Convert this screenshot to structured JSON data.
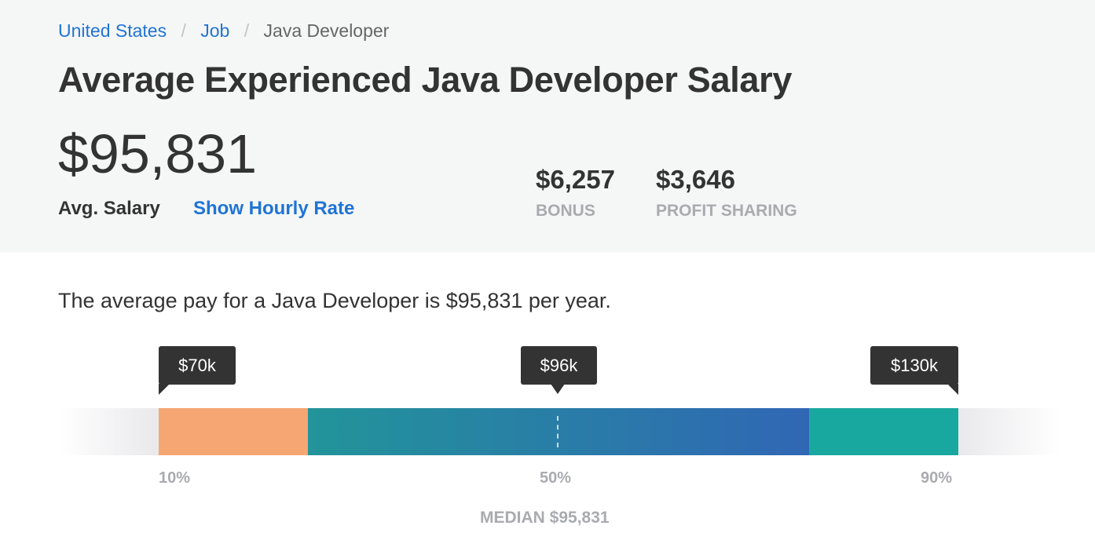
{
  "breadcrumb": {
    "items": [
      "United States",
      "Job",
      "Java Developer"
    ],
    "separator": "/"
  },
  "page_title": "Average Experienced Java Developer Salary",
  "salary": {
    "value": "$95,831",
    "label": "Avg. Salary",
    "hourly_link": "Show Hourly Rate"
  },
  "extras": [
    {
      "value": "$6,257",
      "label": "BONUS"
    },
    {
      "value": "$3,646",
      "label": "PROFIT SHARING"
    }
  ],
  "description": "The average pay for a Java Developer is $95,831 per year.",
  "distribution": {
    "markers": [
      {
        "label": "$70k",
        "percentile": "10%"
      },
      {
        "label": "$96k",
        "percentile": "50%"
      },
      {
        "label": "$130k",
        "percentile": "90%"
      }
    ],
    "median_label": "MEDIAN $95,831",
    "colors": {
      "low": "#f5a673",
      "mid_start": "#22949a",
      "mid_end": "#3067b4",
      "high": "#19a8a0",
      "tooltip": "#333333",
      "link": "#1f74d6"
    }
  }
}
